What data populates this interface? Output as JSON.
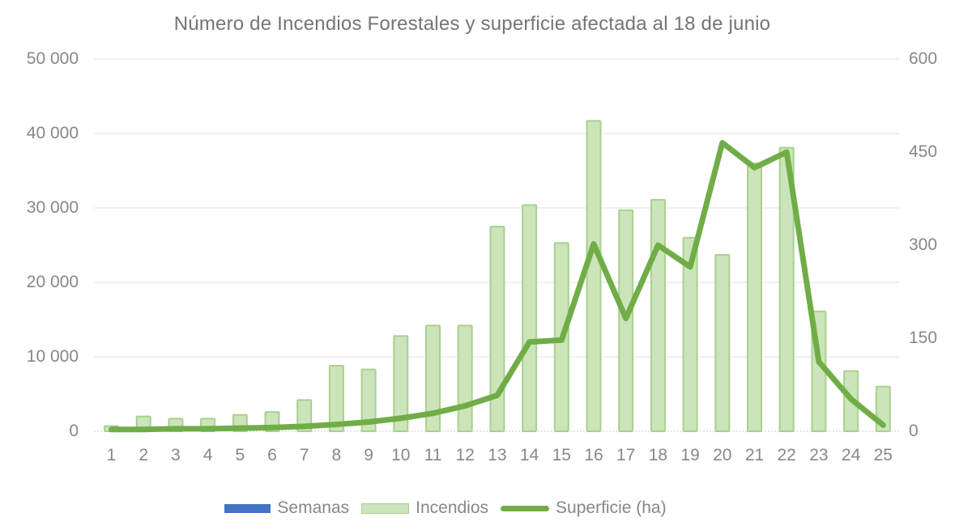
{
  "chart_data": {
    "type": "bar+line combo",
    "title": "Número de Incendios Forestales y superficie afectada al 18 de junio",
    "categories": [
      1,
      2,
      3,
      4,
      5,
      6,
      7,
      8,
      9,
      10,
      11,
      12,
      13,
      14,
      15,
      16,
      17,
      18,
      19,
      20,
      21,
      22,
      23,
      24,
      25
    ],
    "series": [
      {
        "name": "Semanas",
        "type": "bar",
        "axis": "left",
        "color": "#4472c4",
        "values": []
      },
      {
        "name": "Incendios",
        "type": "bar",
        "axis": "left",
        "fill": "#cbe4b9",
        "border": "#a9d18e",
        "values": [
          700,
          2000,
          1700,
          1700,
          2200,
          2600,
          4200,
          8800,
          8300,
          12800,
          14200,
          14200,
          27500,
          30400,
          25300,
          41700,
          29700,
          31100,
          26000,
          23700,
          36000,
          38100,
          16100,
          8100,
          6000
        ]
      },
      {
        "name": "Superficie (ha)",
        "type": "line",
        "axis": "right",
        "color": "#70ad47",
        "values": [
          3,
          3,
          4,
          4,
          5,
          6,
          8,
          11,
          15,
          21,
          29,
          41,
          58,
          144,
          147,
          302,
          182,
          300,
          265,
          465,
          425,
          450,
          112,
          52,
          10
        ]
      }
    ],
    "left_axis": {
      "min": 0,
      "max": 50000,
      "step": 10000,
      "tick_labels": [
        "0",
        "10 000",
        "20 000",
        "30 000",
        "40 000",
        "50 000"
      ]
    },
    "right_axis": {
      "min": 0,
      "max": 600,
      "step": 150,
      "tick_labels": [
        "0",
        "150",
        "300",
        "450",
        "600"
      ]
    },
    "grid": true,
    "legend_position": "bottom",
    "colors": {
      "grid": "#e0e0e0",
      "axis_line": "#cfcfcf",
      "text": "#878787",
      "title_text": "#757575",
      "bar_fill": "#cbe4b9",
      "bar_border": "#a9d18e",
      "line": "#70ad47",
      "semanas_blue": "#4472c4"
    }
  }
}
